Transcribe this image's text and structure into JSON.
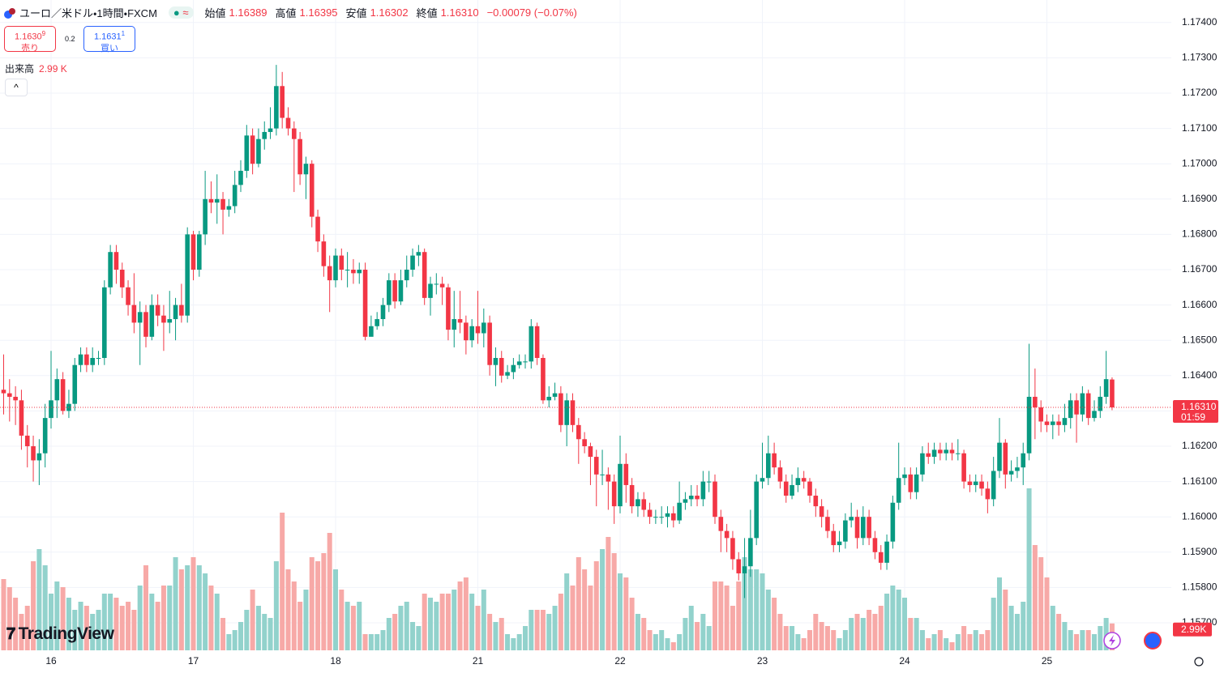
{
  "header": {
    "symbol": "ユーロ／米ドル・1時間・FXCM",
    "open_label": "始値",
    "open": "1.16389",
    "high_label": "高値",
    "high": "1.16395",
    "low_label": "安値",
    "low": "1.16302",
    "close_label": "終値",
    "close": "1.16310",
    "change": "−0.00079 (−0.07%)"
  },
  "trade": {
    "sell_price": "1.1630",
    "sell_pip": "9",
    "sell_label": "売り",
    "spread": "0.2",
    "buy_price": "1.1631",
    "buy_pip": "1",
    "buy_label": "買い"
  },
  "volume_legend": {
    "label": "出来高",
    "value": "2.99 K"
  },
  "logo": "TradingView",
  "chart_data": {
    "type": "candlestick",
    "categories": [
      null,
      null,
      null,
      null,
      null,
      null,
      null,
      null,
      "16",
      null,
      null,
      null,
      null,
      null,
      null,
      null,
      null,
      null,
      null,
      null,
      null,
      null,
      null,
      null,
      null,
      null,
      null,
      null,
      null,
      null,
      null,
      null,
      "17",
      null,
      null,
      null,
      null,
      null,
      null,
      null,
      null,
      null,
      null,
      null,
      null,
      null,
      null,
      null,
      null,
      null,
      null,
      null,
      null,
      null,
      null,
      null,
      "18",
      null,
      null,
      null,
      null,
      null,
      null,
      null,
      null,
      null,
      null,
      null,
      null,
      null,
      null,
      null,
      null,
      null,
      null,
      null,
      null,
      null,
      null,
      null,
      "21",
      null,
      null,
      null,
      null,
      null,
      null,
      null,
      null,
      null,
      null,
      null,
      null,
      null,
      null,
      null,
      null,
      null,
      null,
      null,
      null,
      null,
      null,
      null,
      "22",
      null,
      null,
      null,
      null,
      null,
      null,
      null,
      null,
      null,
      null,
      null,
      null,
      null,
      null,
      null,
      null,
      null,
      null,
      null,
      null,
      null,
      null,
      null,
      "23",
      null,
      null,
      null,
      null,
      null,
      null,
      null,
      null,
      null,
      null,
      null,
      null,
      null,
      null,
      null,
      null,
      null,
      null,
      null,
      null,
      null,
      null,
      null,
      "24",
      null,
      null,
      null,
      null,
      null,
      null,
      null,
      null,
      null,
      null,
      null,
      null,
      null,
      null,
      null,
      null,
      null,
      null,
      null,
      null,
      null,
      null,
      null,
      "25",
      null,
      null,
      null,
      null,
      null,
      null,
      null,
      null,
      null,
      null,
      null
    ],
    "open": [
      1.1636,
      1.1635,
      1.1634,
      1.1633,
      1.1623,
      1.162,
      1.1616,
      1.1618,
      1.1628,
      1.1633,
      1.1639,
      1.163,
      1.1632,
      1.1643,
      1.1646,
      1.1643,
      1.1645,
      1.1645,
      1.1665,
      1.1675,
      1.167,
      1.1665,
      1.166,
      1.1655,
      1.1658,
      1.1651,
      1.166,
      1.1657,
      1.1655,
      1.1656,
      1.166,
      1.1657,
      1.168,
      1.167,
      1.168,
      1.169,
      1.1689,
      1.169,
      1.1687,
      1.1688,
      1.1694,
      1.1698,
      1.1708,
      1.17,
      1.1707,
      1.1709,
      1.171,
      1.1722,
      1.1713,
      1.171,
      1.1707,
      1.1697,
      1.17,
      1.1685,
      1.1678,
      1.1671,
      1.1667,
      1.1674,
      1.167,
      1.167,
      1.1669,
      1.167,
      1.1651,
      1.1654,
      1.1656,
      1.166,
      1.1667,
      1.1661,
      1.1667,
      1.167,
      1.1674,
      1.1675,
      1.1662,
      1.1666,
      1.1666,
      1.1665,
      1.1653,
      1.1656,
      1.1655,
      1.165,
      1.1654,
      1.1652,
      1.1655,
      1.1643,
      1.1645,
      1.164,
      1.1641,
      1.1643,
      1.1644,
      1.1644,
      1.1654,
      1.1645,
      1.1633,
      1.1634,
      1.1635,
      1.1626,
      1.1633,
      1.1626,
      1.1622,
      1.162,
      1.1617,
      1.1612,
      1.1612,
      1.161,
      1.1603,
      1.1615,
      1.1609,
      1.1603,
      1.1605,
      1.1602,
      1.16,
      1.16,
      1.16,
      1.1601,
      1.1599,
      1.1604,
      1.1605,
      1.1606,
      1.1605,
      1.161,
      1.161,
      1.16,
      1.1596,
      1.1594,
      1.1588,
      1.1584,
      1.1586,
      1.1594,
      1.161,
      1.1611,
      1.1618,
      1.1614,
      1.161,
      1.1606,
      1.1609,
      1.1611,
      1.161,
      1.1606,
      1.1603,
      1.16,
      1.1596,
      1.1592,
      1.1593,
      1.1599,
      1.16,
      1.1594,
      1.16,
      1.1594,
      1.159,
      1.1587,
      1.1593,
      1.1604,
      1.1611,
      1.1612,
      1.1607,
      1.1612,
      1.1618,
      1.1617,
      1.1619,
      1.1618,
      1.1619,
      1.1618,
      1.1618,
      1.161,
      1.1609,
      1.161,
      1.1608,
      1.1605,
      1.1613,
      1.1621,
      1.1612,
      1.1613,
      1.1614,
      1.1618,
      1.1634,
      1.1631,
      1.1627,
      1.1626,
      1.1627,
      1.1626,
      1.1628,
      1.1633,
      1.1629,
      1.1635,
      1.1628,
      1.163,
      1.1634,
      1.16389
    ],
    "high": [
      1.1646,
      1.1639,
      1.1637,
      1.1636,
      1.1626,
      1.1623,
      1.1622,
      1.1632,
      1.1647,
      1.1642,
      1.1641,
      1.1636,
      1.1645,
      1.1648,
      1.1648,
      1.1648,
      1.1647,
      1.1667,
      1.1677,
      1.1677,
      1.1672,
      1.1667,
      1.1669,
      1.1661,
      1.166,
      1.1663,
      1.1663,
      1.166,
      1.1664,
      1.1662,
      1.1666,
      1.1682,
      1.1681,
      1.1681,
      1.1698,
      1.1695,
      1.1697,
      1.1692,
      1.169,
      1.1698,
      1.1701,
      1.1711,
      1.171,
      1.171,
      1.1712,
      1.1716,
      1.1728,
      1.1726,
      1.1716,
      1.1712,
      1.1709,
      1.1702,
      1.1701,
      1.1687,
      1.168,
      1.1674,
      1.1676,
      1.1676,
      1.1675,
      1.1673,
      1.1672,
      1.1672,
      1.1657,
      1.1658,
      1.1662,
      1.1669,
      1.1669,
      1.167,
      1.1674,
      1.1676,
      1.1677,
      1.1676,
      1.1668,
      1.1669,
      1.1668,
      1.1666,
      1.1664,
      1.1664,
      1.1657,
      1.1656,
      1.1664,
      1.1659,
      1.1657,
      1.1648,
      1.1647,
      1.1643,
      1.1645,
      1.1646,
      1.1646,
      1.1656,
      1.1655,
      1.1646,
      1.1637,
      1.1638,
      1.1637,
      1.1635,
      1.1635,
      1.1628,
      1.1624,
      1.1621,
      1.1619,
      1.1619,
      1.1614,
      1.1612,
      1.1623,
      1.1618,
      1.1611,
      1.1607,
      1.1607,
      1.1604,
      1.1602,
      1.1603,
      1.1603,
      1.1603,
      1.161,
      1.1607,
      1.1609,
      1.1609,
      1.1613,
      1.1613,
      1.1612,
      1.1602,
      1.1598,
      1.1596,
      1.159,
      1.1594,
      1.1602,
      1.1612,
      1.1621,
      1.1623,
      1.1621,
      1.1616,
      1.1612,
      1.1612,
      1.1614,
      1.1613,
      1.1611,
      1.1608,
      1.1605,
      1.1602,
      1.1598,
      1.1596,
      1.1601,
      1.1604,
      1.1602,
      1.1603,
      1.1602,
      1.1596,
      1.1592,
      1.1595,
      1.1606,
      1.1621,
      1.1614,
      1.1614,
      1.1614,
      1.162,
      1.1621,
      1.1621,
      1.1621,
      1.1621,
      1.1621,
      1.1622,
      1.1619,
      1.1612,
      1.1612,
      1.1612,
      1.161,
      1.1617,
      1.1628,
      1.1622,
      1.1616,
      1.1617,
      1.1621,
      1.1649,
      1.1642,
      1.1633,
      1.1629,
      1.1629,
      1.1629,
      1.1632,
      1.1635,
      1.1635,
      1.1637,
      1.1636,
      1.1633,
      1.1637,
      1.1647,
      1.16395
    ],
    "low": [
      1.1629,
      1.1627,
      1.1626,
      1.1619,
      1.1614,
      1.161,
      1.1609,
      1.1614,
      1.1625,
      1.1628,
      1.1629,
      1.1628,
      1.163,
      1.1641,
      1.1641,
      1.1641,
      1.1643,
      1.1643,
      1.1663,
      1.1666,
      1.1662,
      1.1657,
      1.1652,
      1.1643,
      1.1648,
      1.165,
      1.1654,
      1.1647,
      1.1652,
      1.165,
      1.1655,
      1.1655,
      1.1667,
      1.1668,
      1.1677,
      1.1686,
      1.1683,
      1.168,
      1.1685,
      1.1686,
      1.1692,
      1.1696,
      1.1697,
      1.1699,
      1.1704,
      1.1707,
      1.1708,
      1.171,
      1.1708,
      1.1692,
      1.1694,
      1.169,
      1.1682,
      1.1675,
      1.1668,
      1.1658,
      1.1665,
      1.1667,
      1.1665,
      1.1666,
      1.1666,
      1.165,
      1.1652,
      1.1653,
      1.1654,
      1.1658,
      1.1659,
      1.166,
      1.1665,
      1.1668,
      1.1671,
      1.166,
      1.1657,
      1.1663,
      1.166,
      1.165,
      1.1648,
      1.1652,
      1.1646,
      1.1648,
      1.1649,
      1.1648,
      1.164,
      1.1637,
      1.1638,
      1.1639,
      1.1639,
      1.1642,
      1.1642,
      1.1642,
      1.1643,
      1.1632,
      1.1631,
      1.1633,
      1.1624,
      1.162,
      1.1624,
      1.1615,
      1.1618,
      1.1609,
      1.1603,
      1.1609,
      1.1602,
      1.1598,
      1.1601,
      1.1604,
      1.1601,
      1.16,
      1.16,
      1.1598,
      1.1598,
      1.1598,
      1.1597,
      1.1597,
      1.1598,
      1.1602,
      1.1603,
      1.1603,
      1.1603,
      1.1607,
      1.1598,
      1.159,
      1.159,
      1.1585,
      1.1582,
      1.1577,
      1.1583,
      1.1592,
      1.1608,
      1.1609,
      1.1612,
      1.1608,
      1.1604,
      1.1605,
      1.1607,
      1.1608,
      1.1604,
      1.16,
      1.1597,
      1.1594,
      1.159,
      1.159,
      1.1591,
      1.1597,
      1.1591,
      1.1592,
      1.1592,
      1.1588,
      1.1585,
      1.1585,
      1.1591,
      1.1602,
      1.1609,
      1.1605,
      1.1605,
      1.161,
      1.1615,
      1.1615,
      1.1616,
      1.1616,
      1.1616,
      1.1616,
      1.1608,
      1.1607,
      1.1607,
      1.1606,
      1.1601,
      1.1603,
      1.1611,
      1.1608,
      1.161,
      1.1611,
      1.1609,
      1.1616,
      1.1622,
      1.1624,
      1.1624,
      1.1622,
      1.1623,
      1.1624,
      1.1625,
      1.1621,
      1.1627,
      1.1626,
      1.1627,
      1.1628,
      1.1632,
      1.16302
    ],
    "close": [
      1.1635,
      1.1634,
      1.1633,
      1.1623,
      1.162,
      1.1616,
      1.1618,
      1.1628,
      1.1633,
      1.1639,
      1.163,
      1.1632,
      1.1643,
      1.1646,
      1.1643,
      1.1645,
      1.1645,
      1.1665,
      1.1675,
      1.167,
      1.1665,
      1.166,
      1.1655,
      1.1658,
      1.1651,
      1.166,
      1.1657,
      1.1655,
      1.1656,
      1.166,
      1.1657,
      1.168,
      1.167,
      1.168,
      1.169,
      1.1689,
      1.169,
      1.1687,
      1.1688,
      1.1694,
      1.1698,
      1.1708,
      1.17,
      1.1707,
      1.1709,
      1.171,
      1.1722,
      1.1713,
      1.171,
      1.1707,
      1.1697,
      1.17,
      1.1685,
      1.1678,
      1.1671,
      1.1667,
      1.1674,
      1.167,
      1.167,
      1.1669,
      1.167,
      1.1651,
      1.1654,
      1.1656,
      1.166,
      1.1667,
      1.1661,
      1.1667,
      1.167,
      1.1674,
      1.1675,
      1.1662,
      1.1666,
      1.1666,
      1.1665,
      1.1653,
      1.1656,
      1.1655,
      1.165,
      1.1654,
      1.1652,
      1.1655,
      1.1643,
      1.1645,
      1.164,
      1.1641,
      1.1643,
      1.1644,
      1.1644,
      1.1654,
      1.1645,
      1.1633,
      1.1634,
      1.1635,
      1.1626,
      1.1633,
      1.1626,
      1.1622,
      1.162,
      1.1617,
      1.1612,
      1.1612,
      1.161,
      1.1603,
      1.1615,
      1.1609,
      1.1603,
      1.1605,
      1.1602,
      1.16,
      1.16,
      1.16,
      1.1601,
      1.1599,
      1.1604,
      1.1605,
      1.1606,
      1.1605,
      1.161,
      1.161,
      1.16,
      1.1596,
      1.1594,
      1.1588,
      1.1584,
      1.1586,
      1.1594,
      1.161,
      1.1611,
      1.1618,
      1.1614,
      1.161,
      1.1606,
      1.1609,
      1.1611,
      1.161,
      1.1606,
      1.1603,
      1.16,
      1.1596,
      1.1592,
      1.1593,
      1.1599,
      1.16,
      1.1594,
      1.16,
      1.1594,
      1.159,
      1.1587,
      1.1593,
      1.1604,
      1.1611,
      1.1612,
      1.1607,
      1.1612,
      1.1618,
      1.1617,
      1.1619,
      1.1618,
      1.1619,
      1.1618,
      1.1618,
      1.161,
      1.1609,
      1.161,
      1.1608,
      1.1605,
      1.1613,
      1.1621,
      1.1612,
      1.1613,
      1.1614,
      1.1618,
      1.1634,
      1.1631,
      1.1627,
      1.1626,
      1.1627,
      1.1626,
      1.1628,
      1.1633,
      1.1629,
      1.1635,
      1.1628,
      1.163,
      1.1634,
      1.1639,
      1.1631
    ],
    "up_color": "#089981",
    "down_color": "#f23645",
    "ylim": [
      1.15622,
      1.1745
    ],
    "yticks": [
      {
        "value": 1.174,
        "label": "1.17400"
      },
      {
        "value": 1.173,
        "label": "1.17300"
      },
      {
        "value": 1.172,
        "label": "1.17200"
      },
      {
        "value": 1.171,
        "label": "1.17100"
      },
      {
        "value": 1.17,
        "label": "1.17000"
      },
      {
        "value": 1.169,
        "label": "1.16900"
      },
      {
        "value": 1.168,
        "label": "1.16800"
      },
      {
        "value": 1.167,
        "label": "1.16700"
      },
      {
        "value": 1.166,
        "label": "1.16600"
      },
      {
        "value": 1.165,
        "label": "1.16500"
      },
      {
        "value": 1.164,
        "label": "1.16400"
      },
      {
        "value": 1.163,
        "label": "1.16300"
      },
      {
        "value": 1.162,
        "label": "1.16200"
      },
      {
        "value": 1.161,
        "label": "1.16100"
      },
      {
        "value": 1.16,
        "label": "1.16000"
      },
      {
        "value": 1.159,
        "label": "1.15900"
      },
      {
        "value": 1.158,
        "label": "1.15800"
      },
      {
        "value": 1.157,
        "label": "1.15700"
      }
    ],
    "grid": true,
    "volume": {
      "ylim": [
        0,
        72000
      ],
      "up_color": "#92d2cc",
      "down_color": "#f7a9a7",
      "values": [
        7920,
        7020,
        5850,
        4050,
        4950,
        9900,
        11250,
        9450,
        6300,
        7650,
        7020,
        5850,
        4500,
        5400,
        4950,
        4050,
        4500,
        6300,
        6300,
        5850,
        4950,
        5400,
        4500,
        7200,
        9450,
        6300,
        5400,
        7200,
        7200,
        10350,
        9000,
        9450,
        10350,
        9450,
        8550,
        7200,
        6300,
        3600,
        1800,
        2250,
        3150,
        4500,
        6750,
        4950,
        4050,
        3600,
        9900,
        15300,
        9000,
        7650,
        5400,
        6750,
        10350,
        9900,
        10800,
        13050,
        9000,
        6750,
        5400,
        4950,
        5400,
        1800,
        1800,
        1800,
        2250,
        3600,
        4050,
        4950,
        5400,
        3150,
        2700,
        6300,
        5850,
        5400,
        6300,
        6300,
        6750,
        7650,
        8100,
        6300,
        4950,
        6750,
        4050,
        3150,
        3600,
        1800,
        1350,
        1800,
        2700,
        4500,
        4500,
        4500,
        4050,
        4950,
        6300,
        8550,
        7200,
        10350,
        9000,
        7200,
        9900,
        11250,
        12600,
        10800,
        8550,
        8100,
        5850,
        4050,
        3600,
        2250,
        1800,
        2250,
        1350,
        900,
        1800,
        3600,
        4950,
        3150,
        4050,
        2700,
        7650,
        7650,
        7200,
        4950,
        7650,
        10350,
        9000,
        9000,
        8550,
        6750,
        5850,
        4050,
        2700,
        2700,
        1800,
        1350,
        2250,
        4050,
        3150,
        2700,
        2250,
        1350,
        2250,
        3600,
        4050,
        3600,
        4500,
        4050,
        4950,
        6300,
        7200,
        6750,
        5850,
        3600,
        3600,
        2250,
        1350,
        1800,
        2250,
        1350,
        900,
        1800,
        2700,
        1800,
        2250,
        1800,
        2250,
        5850,
        8100,
        6750,
        4950,
        4050,
        5400,
        18000,
        11700,
        10350,
        8100,
        4950,
        4050,
        3150,
        2250,
        1800,
        2250,
        2250,
        1800,
        2700,
        3600,
        2990
      ]
    },
    "last_label": {
      "price": "1.16310",
      "countdown": "01:59",
      "volume": "2.99K"
    }
  }
}
